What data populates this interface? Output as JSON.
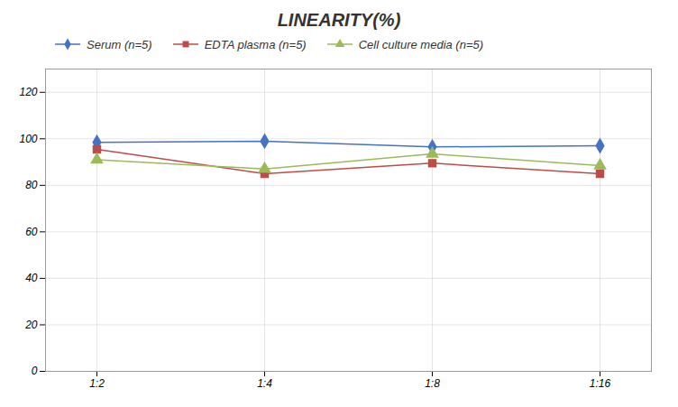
{
  "chart_data": {
    "type": "line",
    "title": "LINEARITY(%)",
    "categories": [
      "1:2",
      "1:4",
      "1:8",
      "1:16"
    ],
    "series": [
      {
        "name": "Serum (n=5)",
        "color": "#4472C4",
        "marker": "diamond",
        "values": [
          98.5,
          99.0,
          96.5,
          97.0
        ]
      },
      {
        "name": "EDTA plasma (n=5)",
        "color": "#BE4B48",
        "marker": "square",
        "values": [
          95.5,
          85.0,
          89.5,
          85.0
        ]
      },
      {
        "name": "Cell culture media (n=5)",
        "color": "#9BBB59",
        "marker": "triangle",
        "values": [
          91.0,
          87.0,
          93.5,
          88.5
        ]
      }
    ],
    "ylim": [
      0,
      130
    ],
    "yticks": [
      0,
      20,
      40,
      60,
      80,
      100,
      120
    ],
    "grid": true,
    "legend": "top"
  }
}
